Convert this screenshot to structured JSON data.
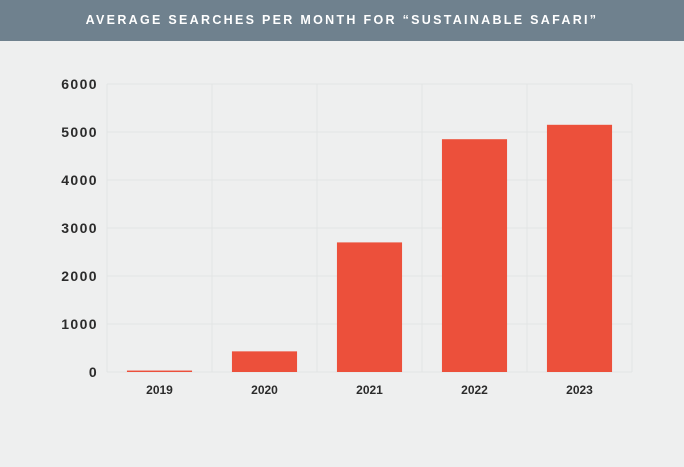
{
  "header": {
    "title": "AVERAGE SEARCHES PER MONTH FOR “SUSTAINABLE SAFARI”"
  },
  "colors": {
    "header_bg": "#6f818e",
    "background": "#eeefef",
    "bar": "#ec503b",
    "grid": "#e2e4e4",
    "text": "#2b2b2b"
  },
  "chart_data": {
    "type": "bar",
    "title": "AVERAGE SEARCHES PER MONTH FOR “SUSTAINABLE SAFARI”",
    "categories": [
      "2019",
      "2020",
      "2021",
      "2022",
      "2023"
    ],
    "values": [
      30,
      430,
      2700,
      4850,
      5150
    ],
    "xlabel": "",
    "ylabel": "",
    "ylim": [
      0,
      6000
    ],
    "yticks": [
      "0",
      "1000",
      "2000",
      "3000",
      "4000",
      "5000",
      "6000"
    ],
    "grid": true,
    "legend": "none"
  }
}
